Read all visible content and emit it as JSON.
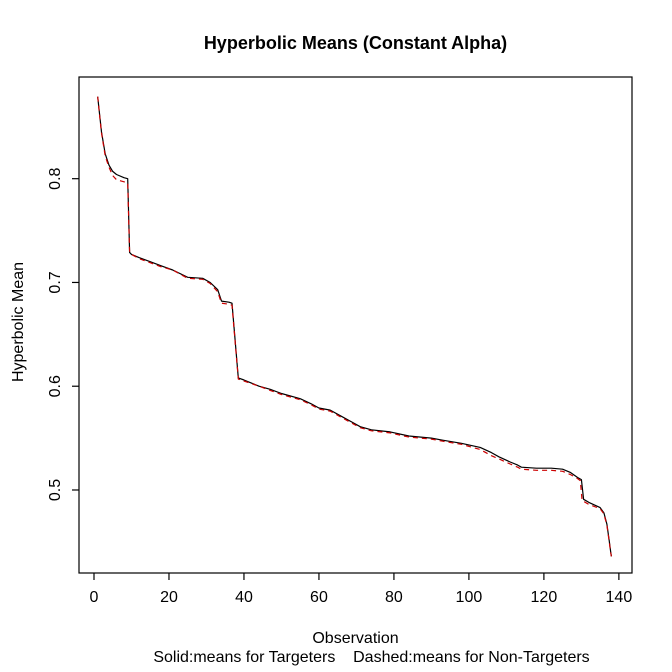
{
  "figure": {
    "title": "Hyperbolic Means (Constant Alpha)",
    "xlabel": "Observation",
    "ylabel": "Hyperbolic Mean",
    "caption": "Solid:means for Targeters    Dashed:means for Non-Targeters"
  },
  "chart_data": {
    "type": "line",
    "title": "Hyperbolic Means (Constant Alpha)",
    "xlabel": "Observation",
    "ylabel": "Hyperbolic Mean",
    "caption": "Solid:means for Targeters    Dashed:means for Non-Targeters",
    "grid": false,
    "legend_position": "none",
    "xlim": [
      -4.0,
      143.5
    ],
    "ylim": [
      0.42,
      0.898
    ],
    "xticks": [
      0,
      20,
      40,
      60,
      80,
      100,
      120,
      140
    ],
    "yticks": [
      0.5,
      0.6,
      0.7,
      0.8
    ],
    "ytick_labels": [
      "0.5",
      "0.6",
      "0.7",
      "0.8"
    ],
    "axis_color": "#000000",
    "background_color": "#ffffff",
    "series": [
      {
        "name": "means for Targeters",
        "style": "solid",
        "color": "#000000",
        "points": [
          [
            1,
            0.879
          ],
          [
            1.5,
            0.862
          ],
          [
            2,
            0.845
          ],
          [
            3,
            0.824
          ],
          [
            4,
            0.813
          ],
          [
            5,
            0.807
          ],
          [
            6,
            0.804
          ],
          [
            8,
            0.801
          ],
          [
            9,
            0.8
          ],
          [
            9.5,
            0.729
          ],
          [
            10,
            0.727
          ],
          [
            12,
            0.724
          ],
          [
            15,
            0.72
          ],
          [
            18,
            0.716
          ],
          [
            21,
            0.712
          ],
          [
            25,
            0.705
          ],
          [
            29,
            0.704
          ],
          [
            31,
            0.7
          ],
          [
            33,
            0.693
          ],
          [
            34,
            0.682
          ],
          [
            36,
            0.681
          ],
          [
            36.8,
            0.68
          ],
          [
            38.5,
            0.608
          ],
          [
            40,
            0.606
          ],
          [
            44,
            0.6
          ],
          [
            47,
            0.597
          ],
          [
            50,
            0.593
          ],
          [
            55,
            0.588
          ],
          [
            58,
            0.583
          ],
          [
            60,
            0.579
          ],
          [
            63,
            0.577
          ],
          [
            66,
            0.571
          ],
          [
            69,
            0.565
          ],
          [
            71,
            0.561
          ],
          [
            74,
            0.558
          ],
          [
            79,
            0.556
          ],
          [
            84,
            0.552
          ],
          [
            90,
            0.55
          ],
          [
            93,
            0.548
          ],
          [
            98,
            0.545
          ],
          [
            103,
            0.541
          ],
          [
            106,
            0.536
          ],
          [
            108,
            0.532
          ],
          [
            111,
            0.527
          ],
          [
            113,
            0.524
          ],
          [
            114,
            0.522
          ],
          [
            118,
            0.521
          ],
          [
            122,
            0.521
          ],
          [
            125,
            0.52
          ],
          [
            127,
            0.517
          ],
          [
            129,
            0.512
          ],
          [
            130,
            0.51
          ],
          [
            130.6,
            0.491
          ],
          [
            132,
            0.488
          ],
          [
            135,
            0.483
          ],
          [
            136,
            0.478
          ],
          [
            136.8,
            0.467
          ],
          [
            137.4,
            0.452
          ],
          [
            137.8,
            0.441
          ],
          [
            138,
            0.436
          ]
        ]
      },
      {
        "name": "means for Non-Targeters",
        "style": "dashed",
        "color": "#cc0000",
        "points": [
          [
            1,
            0.879
          ],
          [
            1.5,
            0.861
          ],
          [
            2,
            0.844
          ],
          [
            3,
            0.822
          ],
          [
            4,
            0.811
          ],
          [
            5,
            0.803
          ],
          [
            6,
            0.799
          ],
          [
            8,
            0.797
          ],
          [
            9,
            0.796
          ],
          [
            9.5,
            0.729
          ],
          [
            10,
            0.727
          ],
          [
            12,
            0.723
          ],
          [
            15,
            0.719
          ],
          [
            18,
            0.715
          ],
          [
            21,
            0.712
          ],
          [
            25,
            0.704
          ],
          [
            29,
            0.703
          ],
          [
            31,
            0.699
          ],
          [
            33,
            0.691
          ],
          [
            34,
            0.68
          ],
          [
            36,
            0.679
          ],
          [
            36.8,
            0.678
          ],
          [
            38.5,
            0.607
          ],
          [
            40,
            0.605
          ],
          [
            44,
            0.6
          ],
          [
            47,
            0.596
          ],
          [
            50,
            0.592
          ],
          [
            55,
            0.587
          ],
          [
            58,
            0.582
          ],
          [
            60,
            0.578
          ],
          [
            63,
            0.576
          ],
          [
            66,
            0.57
          ],
          [
            69,
            0.564
          ],
          [
            71,
            0.56
          ],
          [
            74,
            0.557
          ],
          [
            79,
            0.555
          ],
          [
            84,
            0.551
          ],
          [
            90,
            0.549
          ],
          [
            93,
            0.547
          ],
          [
            98,
            0.544
          ],
          [
            103,
            0.539
          ],
          [
            106,
            0.533
          ],
          [
            108,
            0.53
          ],
          [
            111,
            0.525
          ],
          [
            113,
            0.522
          ],
          [
            114,
            0.52
          ],
          [
            118,
            0.519
          ],
          [
            122,
            0.519
          ],
          [
            125,
            0.518
          ],
          [
            127,
            0.515
          ],
          [
            129,
            0.511
          ],
          [
            129.7,
            0.509
          ],
          [
            130.2,
            0.49
          ],
          [
            132,
            0.486
          ],
          [
            135,
            0.482
          ],
          [
            136,
            0.477
          ],
          [
            136.8,
            0.466
          ],
          [
            137.4,
            0.451
          ],
          [
            137.8,
            0.44
          ],
          [
            138,
            0.436
          ]
        ]
      }
    ]
  }
}
